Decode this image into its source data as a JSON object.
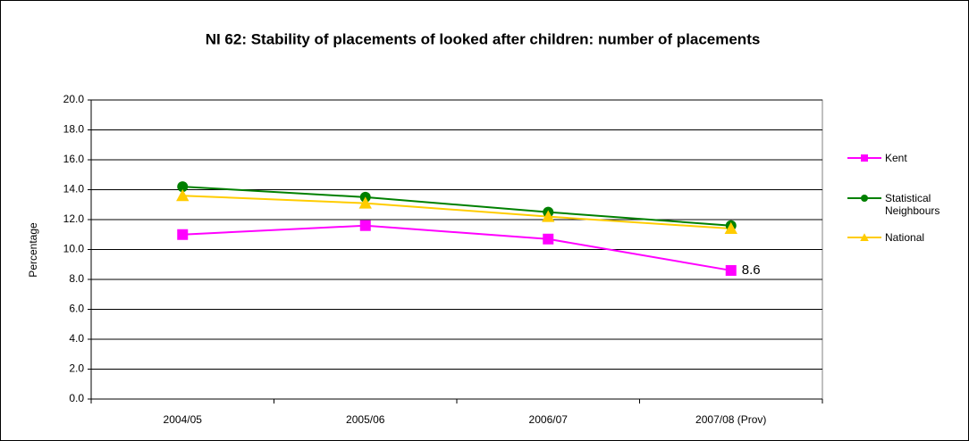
{
  "chart_data": {
    "type": "line",
    "title": "NI 62: Stability of placements of looked after children: number of placements",
    "y_label": "Percentage",
    "categories": [
      "2004/05",
      "2005/06",
      "2006/07",
      "2007/08 (Prov)"
    ],
    "series": [
      {
        "name": "Kent",
        "color": "#ff00ff",
        "marker": "square",
        "label_last": true,
        "values": [
          11.0,
          11.6,
          10.7,
          8.6
        ]
      },
      {
        "name": "Statistical Neighbours",
        "color": "#008000",
        "marker": "circle",
        "values": [
          14.2,
          13.5,
          12.5,
          11.6
        ]
      },
      {
        "name": "National",
        "color": "#ffcc00",
        "marker": "triangle",
        "values": [
          13.6,
          13.1,
          12.2,
          11.4
        ]
      }
    ],
    "ylim": [
      0,
      20
    ],
    "yticks": [
      {
        "value": 0,
        "label": "0.0"
      },
      {
        "value": 2,
        "label": "2.0"
      },
      {
        "value": 4,
        "label": "4.0"
      },
      {
        "value": 6,
        "label": "6.0"
      },
      {
        "value": 8,
        "label": "8.0"
      },
      {
        "value": 10,
        "label": "10.0"
      },
      {
        "value": 12,
        "label": "12.0"
      },
      {
        "value": 14,
        "label": "14.0"
      },
      {
        "value": 16,
        "label": "16.0"
      },
      {
        "value": 18,
        "label": "18.0"
      },
      {
        "value": 20,
        "label": "20.0"
      }
    ],
    "grid": true,
    "legend": "right"
  }
}
